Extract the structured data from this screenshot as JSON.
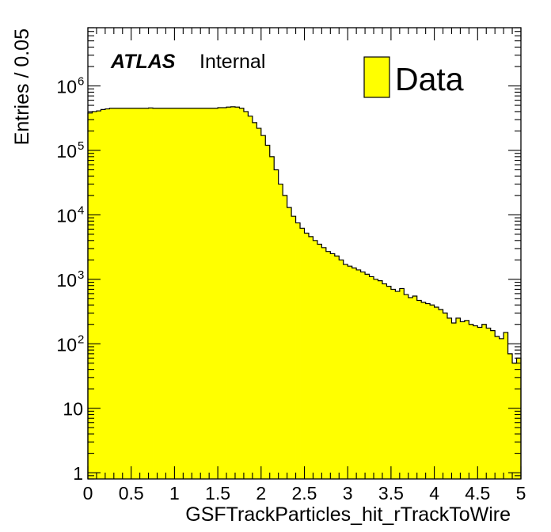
{
  "chart_data": {
    "type": "histogram",
    "ylabel": "Entries / 0.05",
    "xlabel": "GSFTrackParticles_hit_rTrackToWire",
    "atlas_label": "ATLAS",
    "atlas_status": "Internal",
    "xlim": [
      0,
      5
    ],
    "ylim": [
      0.8,
      8000000
    ],
    "log_y": true,
    "bin_width": 0.05,
    "x_ticks": [
      "0",
      "0.5",
      "1",
      "1.5",
      "2",
      "2.5",
      "3",
      "3.5",
      "4",
      "4.5",
      "5"
    ],
    "y_ticks": [
      {
        "value": 1,
        "base": "1",
        "exp": ""
      },
      {
        "value": 10,
        "base": "10",
        "exp": ""
      },
      {
        "value": 100,
        "base": "10",
        "exp": "2"
      },
      {
        "value": 1000,
        "base": "10",
        "exp": "3"
      },
      {
        "value": 10000,
        "base": "10",
        "exp": "4"
      },
      {
        "value": 100000,
        "base": "10",
        "exp": "5"
      },
      {
        "value": 1000000,
        "base": "10",
        "exp": "6"
      }
    ],
    "legend": {
      "placement": "top-right",
      "entries": [
        {
          "label": "Data",
          "color": "#ffff00"
        }
      ]
    },
    "series": [
      {
        "name": "Data",
        "fill": "#ffff00",
        "line": "#000000",
        "values": [
          380000,
          400000,
          410000,
          430000,
          440000,
          450000,
          450000,
          450000,
          450000,
          450000,
          450000,
          450000,
          450000,
          450000,
          455000,
          450000,
          450000,
          450000,
          450000,
          450000,
          450000,
          450000,
          450000,
          450000,
          450000,
          450000,
          450000,
          450000,
          450000,
          450000,
          460000,
          460000,
          470000,
          475000,
          470000,
          450000,
          400000,
          340000,
          270000,
          220000,
          170000,
          120000,
          80000,
          50000,
          30000,
          20000,
          13000,
          9500,
          7500,
          6200,
          5200,
          4600,
          4000,
          3500,
          3100,
          2700,
          2500,
          2300,
          2000,
          1700,
          1600,
          1500,
          1400,
          1300,
          1200,
          1100,
          1000,
          950,
          850,
          780,
          700,
          650,
          720,
          580,
          520,
          550,
          470,
          440,
          420,
          400,
          370,
          340,
          300,
          250,
          210,
          250,
          220,
          230,
          200,
          190,
          180,
          200,
          175,
          160,
          130,
          120,
          150,
          70,
          50,
          60
        ]
      }
    ]
  }
}
